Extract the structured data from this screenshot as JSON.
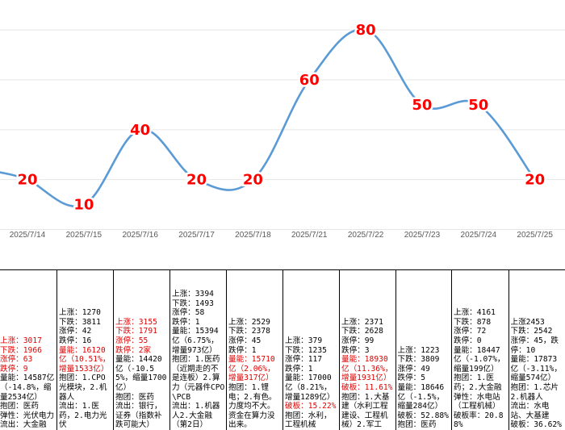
{
  "chart_data": {
    "type": "line",
    "x": [
      "2025/7/14",
      "2025/7/15",
      "2025/7/16",
      "2025/7/17",
      "2025/7/18",
      "2025/7/21",
      "2025/7/22",
      "2025/7/23",
      "2025/7/24",
      "2025/7/25"
    ],
    "values": [
      20,
      10,
      40,
      20,
      20,
      60,
      80,
      50,
      50,
      20
    ],
    "ylim": [
      -5,
      92
    ],
    "grid": "horizontal",
    "line_color": "#5b9bd5",
    "label_color": "#ff0000",
    "title": "",
    "xlabel": "",
    "ylabel": ""
  },
  "table": [
    {
      "lines": [
        {
          "t": "上涨：3017",
          "red": true
        },
        {
          "t": "下跌：1966",
          "red": true
        },
        {
          "t": "涨停：63",
          "red": true
        },
        {
          "t": "跌停：9",
          "red": true
        },
        {
          "t": "量能：14587亿（-14.8%，缩量2534亿）",
          "red": false
        },
        {
          "t": "抱团：医药",
          "red": false
        },
        {
          "t": "弹性：光伏电力",
          "red": false
        },
        {
          "t": "流出：大金融",
          "red": false
        }
      ]
    },
    {
      "lines": [
        {
          "t": "上涨：1270",
          "red": false
        },
        {
          "t": "下跌：3811",
          "red": false
        },
        {
          "t": "涨停：42",
          "red": false
        },
        {
          "t": "跌停：16",
          "red": false
        },
        {
          "t": "量能：16120亿（10.51%，增量1533亿）",
          "red": true
        },
        {
          "t": "抱团：1.CPO光模块，2.机器人",
          "red": false
        },
        {
          "t": "流出：1.医药，2.电力光伏",
          "red": false
        }
      ]
    },
    {
      "lines": [
        {
          "t": "上涨：3155",
          "red": true
        },
        {
          "t": "下跌：1791",
          "red": true
        },
        {
          "t": "涨停：55",
          "red": true
        },
        {
          "t": "跌停：2家",
          "red": true
        },
        {
          "t": "量能：14420亿（-10.55%，缩量1700亿）",
          "red": false
        },
        {
          "t": "抱团：医药",
          "red": false
        },
        {
          "t": "流出：银行，证券（指数补跌可能大）",
          "red": false
        }
      ]
    },
    {
      "lines": [
        {
          "t": "上涨：3394",
          "red": false
        },
        {
          "t": "下跌：1493",
          "red": false
        },
        {
          "t": "涨停：58",
          "red": false
        },
        {
          "t": "跌停：1",
          "red": false
        },
        {
          "t": "量能：15394亿（6.75%，增量973亿）",
          "red": false
        },
        {
          "t": "抱团：1.医药（近期走的不是连板）2.算力（元器件CPO\\PCB",
          "red": false
        },
        {
          "t": "流出：1.机器人2.大金融（第2日）",
          "red": false
        }
      ]
    },
    {
      "lines": [
        {
          "t": "上涨：2529",
          "red": false
        },
        {
          "t": "下跌：2378",
          "red": false
        },
        {
          "t": "涨停：45",
          "red": false
        },
        {
          "t": "跌停：1",
          "red": false
        },
        {
          "t": "量能：15710亿（2.06%，增量317亿）",
          "red": true
        },
        {
          "t": "抱团：1.锂电；2.有色。力度均不大。资金在算力没出来。",
          "red": false
        }
      ]
    },
    {
      "lines": [
        {
          "t": "上涨：379",
          "red": false
        },
        {
          "t": "下跌：1235",
          "red": false
        },
        {
          "t": "涨停：117",
          "red": false
        },
        {
          "t": "跌停：1",
          "red": false
        },
        {
          "t": "量能：17000亿（8.21%，增量1289亿）",
          "red": false
        },
        {
          "t": "破板：15.22%",
          "red": true
        },
        {
          "t": "抱团：水利，工程机械",
          "red": false
        }
      ]
    },
    {
      "lines": [
        {
          "t": "上涨：2371",
          "red": false
        },
        {
          "t": "下跌：2628",
          "red": false
        },
        {
          "t": "涨停：99",
          "red": false
        },
        {
          "t": "跌停：3",
          "red": false
        },
        {
          "t": "量能：18930亿（11.36%，增量1931亿）",
          "red": true
        },
        {
          "t": "破板：11.61%",
          "red": true
        },
        {
          "t": "抱团：1.大基建（水利工程建设、工程机械）2.军工",
          "red": false
        }
      ]
    },
    {
      "lines": [
        {
          "t": "上涨：1223",
          "red": false
        },
        {
          "t": "下跌：3809",
          "red": false
        },
        {
          "t": "涨停：49",
          "red": false
        },
        {
          "t": "跌停：5",
          "red": false
        },
        {
          "t": "量能：18646亿（-1.5%，缩量284亿）",
          "red": false
        },
        {
          "t": "破板：52.88%",
          "red": false
        },
        {
          "t": "抱团：医药",
          "red": false
        }
      ]
    },
    {
      "lines": [
        {
          "t": "上涨：4161",
          "red": false
        },
        {
          "t": "下跌：878",
          "red": false
        },
        {
          "t": "涨停：72",
          "red": false
        },
        {
          "t": "跌停：0",
          "red": false
        },
        {
          "t": "量能：18447亿（-1.07%，缩量199亿）",
          "red": false
        },
        {
          "t": "抱团：1.医药；2.大金融",
          "red": false
        },
        {
          "t": "弹性：水电站（工程机械）",
          "red": false
        },
        {
          "t": "破板率：20.88%",
          "red": false
        }
      ]
    },
    {
      "lines": [
        {
          "t": "上涨2453",
          "red": false
        },
        {
          "t": "下跌：2542",
          "red": false
        },
        {
          "t": "涨停：45，跌停：10",
          "red": false
        },
        {
          "t": "量能：17873亿（-3.11%，缩量574亿）",
          "red": false
        },
        {
          "t": "抱团：1.芯片2.机器人",
          "red": false
        },
        {
          "t": "流出：水电站、大基建",
          "red": false
        },
        {
          "t": "破板：36.62%",
          "red": false
        }
      ]
    }
  ]
}
